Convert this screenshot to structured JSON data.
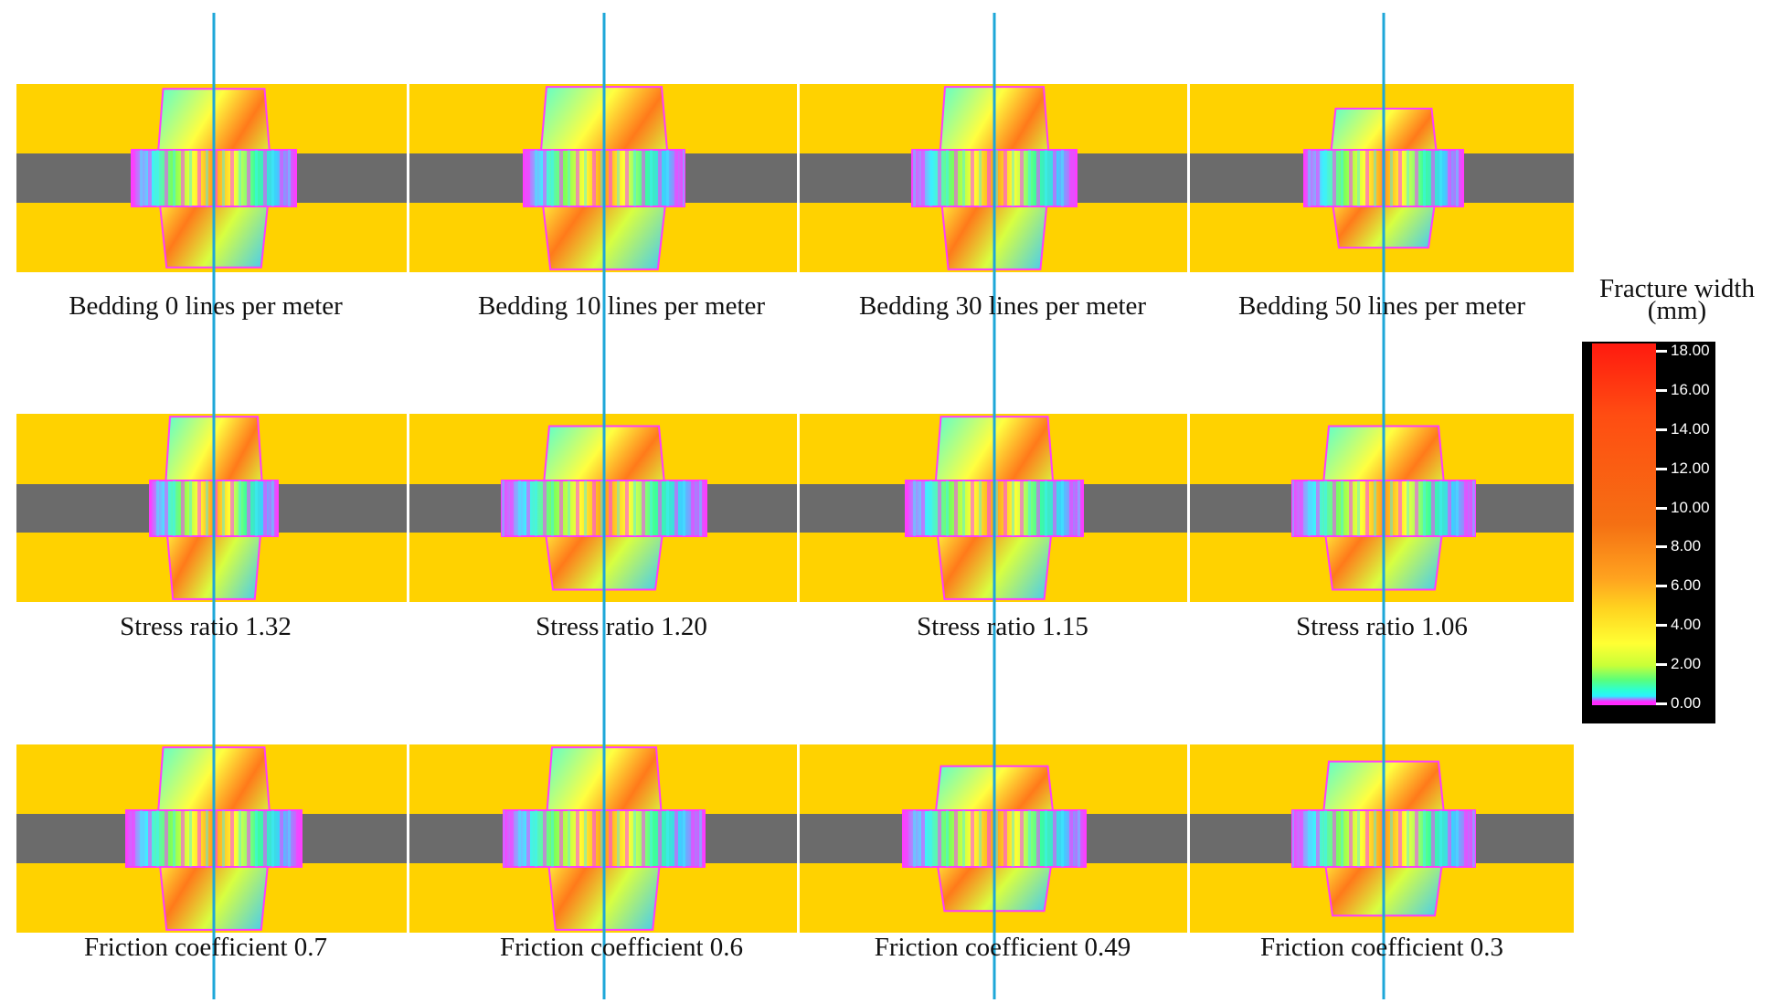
{
  "rows": [
    {
      "group": "bedding",
      "panels": [
        {
          "caption": "Bedding 0 lines per meter"
        },
        {
          "caption": "Bedding 10 lines per meter"
        },
        {
          "caption": "Bedding 30 lines per meter"
        },
        {
          "caption": "Bedding 50 lines per meter"
        }
      ]
    },
    {
      "group": "stress-ratio",
      "panels": [
        {
          "caption": "Stress ratio 1.32"
        },
        {
          "caption": "Stress ratio 1.20"
        },
        {
          "caption": "Stress ratio 1.15"
        },
        {
          "caption": "Stress ratio 1.06"
        }
      ]
    },
    {
      "group": "friction",
      "panels": [
        {
          "caption": "Friction coefficient 0.7"
        },
        {
          "caption": "Friction coefficient 0.6"
        },
        {
          "caption": "Friction coefficient 0.49"
        },
        {
          "caption": "Friction coefficient 0.3"
        }
      ]
    }
  ],
  "colorbar": {
    "title_line1": "Fracture width",
    "title_line2": "(mm)",
    "ticks": [
      "18.00",
      "16.00",
      "14.00",
      "12.00",
      "10.00",
      "8.00",
      "6.00",
      "4.00",
      "2.00",
      "0.00"
    ],
    "range_mm": [
      0,
      18
    ]
  },
  "colors": {
    "formation": "#ffd200",
    "target_layer": "#6b6b6b",
    "wellbore_line": "#1ea7d8"
  }
}
